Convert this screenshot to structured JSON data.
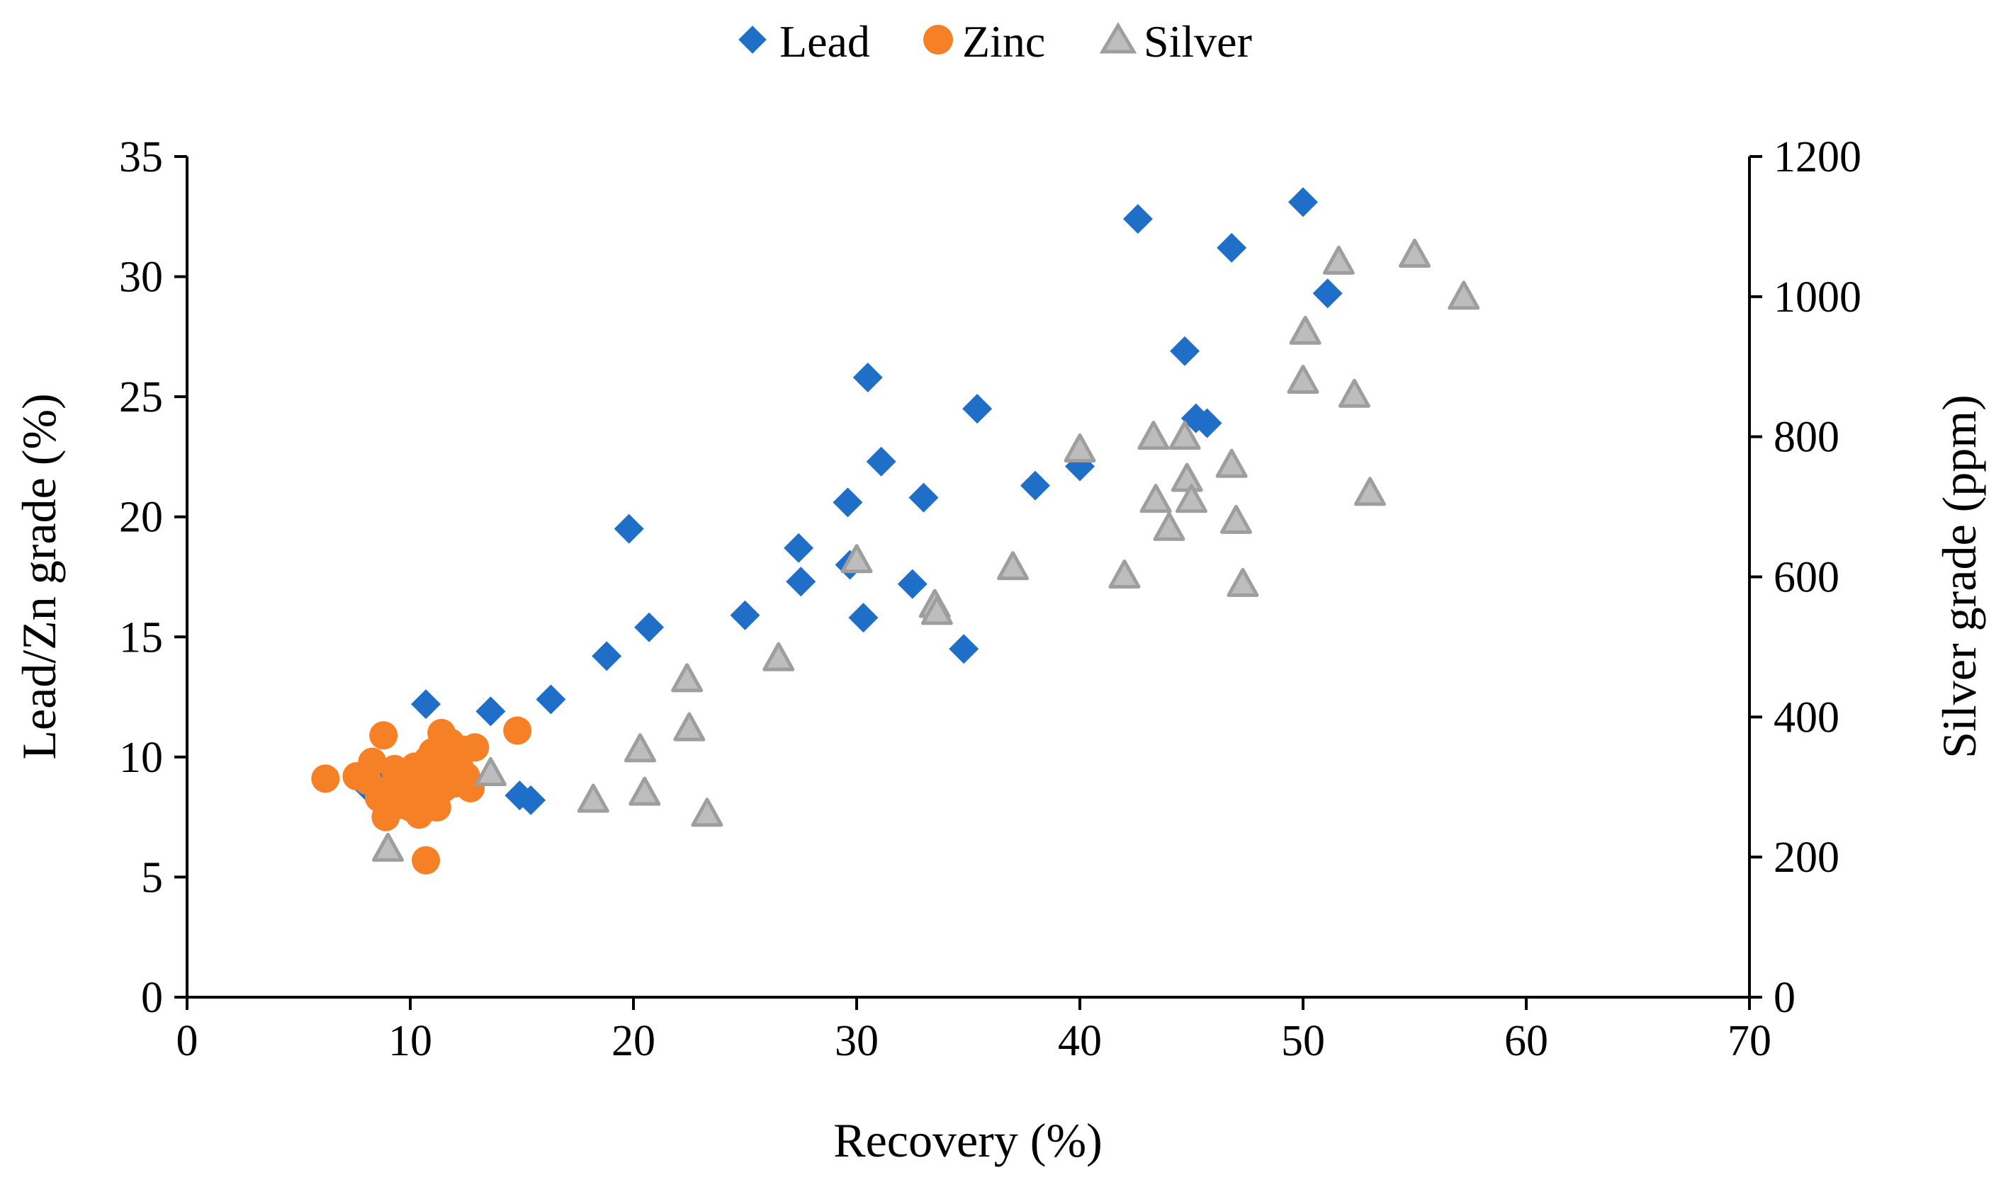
{
  "chart_data": {
    "type": "scatter",
    "title": "",
    "xlabel": "Recovery (%)",
    "ylabel": "Lead/Zn grade (%)",
    "y2label": "Silver grade (ppm)",
    "xlim": [
      0,
      70
    ],
    "ylim": [
      0,
      35
    ],
    "y2lim": [
      0,
      1200
    ],
    "xticks": [
      0,
      10,
      20,
      30,
      40,
      50,
      60,
      70
    ],
    "yticks": [
      0,
      5,
      10,
      15,
      20,
      25,
      30,
      35
    ],
    "y2ticks": [
      0,
      200,
      400,
      600,
      800,
      1000,
      1200
    ],
    "grid": false,
    "legend_position": "top-center",
    "series": [
      {
        "name": "Lead",
        "axis": "left",
        "marker": "diamond",
        "color": "#1F6FC9",
        "points": [
          [
            8.0,
            8.8
          ],
          [
            8.8,
            8.4
          ],
          [
            9.0,
            9.1
          ],
          [
            9.8,
            8.6
          ],
          [
            10.7,
            12.2
          ],
          [
            13.6,
            11.9
          ],
          [
            14.9,
            8.4
          ],
          [
            15.4,
            8.2
          ],
          [
            16.3,
            12.4
          ],
          [
            18.8,
            14.2
          ],
          [
            19.8,
            19.5
          ],
          [
            20.7,
            15.4
          ],
          [
            25.0,
            15.9
          ],
          [
            27.4,
            18.7
          ],
          [
            27.5,
            17.3
          ],
          [
            29.6,
            20.6
          ],
          [
            29.7,
            18.0
          ],
          [
            30.3,
            15.8
          ],
          [
            30.5,
            25.8
          ],
          [
            31.1,
            22.3
          ],
          [
            32.5,
            17.2
          ],
          [
            33.0,
            20.8
          ],
          [
            34.8,
            14.5
          ],
          [
            35.4,
            24.5
          ],
          [
            38.0,
            21.3
          ],
          [
            40.0,
            22.1
          ],
          [
            42.6,
            32.4
          ],
          [
            44.7,
            26.9
          ],
          [
            45.2,
            24.1
          ],
          [
            45.7,
            23.9
          ],
          [
            46.8,
            31.2
          ],
          [
            50.0,
            33.1
          ],
          [
            51.1,
            29.3
          ]
        ]
      },
      {
        "name": "Zinc",
        "axis": "left",
        "marker": "circle",
        "color": "#F58026",
        "points": [
          [
            6.2,
            9.1
          ],
          [
            7.6,
            9.2
          ],
          [
            8.1,
            9.0
          ],
          [
            8.3,
            9.8
          ],
          [
            8.6,
            8.3
          ],
          [
            8.8,
            10.9
          ],
          [
            8.9,
            7.5
          ],
          [
            9.1,
            8.7
          ],
          [
            9.3,
            9.5
          ],
          [
            9.5,
            8.0
          ],
          [
            9.7,
            9.2
          ],
          [
            9.9,
            8.5
          ],
          [
            10.0,
            7.9
          ],
          [
            10.2,
            9.6
          ],
          [
            10.4,
            7.6
          ],
          [
            10.6,
            8.8
          ],
          [
            10.7,
            5.7
          ],
          [
            10.8,
            9.9
          ],
          [
            10.9,
            8.3
          ],
          [
            11.0,
            10.2
          ],
          [
            11.1,
            9.0
          ],
          [
            11.2,
            7.9
          ],
          [
            11.4,
            11.0
          ],
          [
            11.5,
            8.7
          ],
          [
            11.6,
            9.4
          ],
          [
            11.8,
            10.6
          ],
          [
            11.9,
            9.9
          ],
          [
            12.0,
            8.9
          ],
          [
            12.2,
            9.6
          ],
          [
            12.4,
            10.3
          ],
          [
            12.5,
            9.2
          ],
          [
            12.7,
            8.7
          ],
          [
            12.9,
            10.4
          ],
          [
            14.8,
            11.1
          ]
        ]
      },
      {
        "name": "Silver",
        "axis": "right",
        "marker": "triangle",
        "color": "#BDBDBD",
        "points": [
          [
            9.0,
            210
          ],
          [
            13.6,
            318
          ],
          [
            18.2,
            280
          ],
          [
            20.3,
            352
          ],
          [
            20.5,
            290
          ],
          [
            22.4,
            452
          ],
          [
            22.5,
            382
          ],
          [
            23.3,
            260
          ],
          [
            26.5,
            482
          ],
          [
            30.0,
            622
          ],
          [
            33.5,
            558
          ],
          [
            33.6,
            548
          ],
          [
            37.0,
            612
          ],
          [
            40.0,
            780
          ],
          [
            42.0,
            600
          ],
          [
            43.3,
            798
          ],
          [
            43.4,
            708
          ],
          [
            44.0,
            668
          ],
          [
            44.7,
            798
          ],
          [
            44.8,
            738
          ],
          [
            45.0,
            708
          ],
          [
            46.8,
            758
          ],
          [
            47.0,
            678
          ],
          [
            47.3,
            588
          ],
          [
            50.0,
            878
          ],
          [
            50.1,
            948
          ],
          [
            51.6,
            1048
          ],
          [
            52.3,
            858
          ],
          [
            53.0,
            718
          ],
          [
            55.0,
            1058
          ],
          [
            57.2,
            998
          ]
        ]
      }
    ]
  }
}
